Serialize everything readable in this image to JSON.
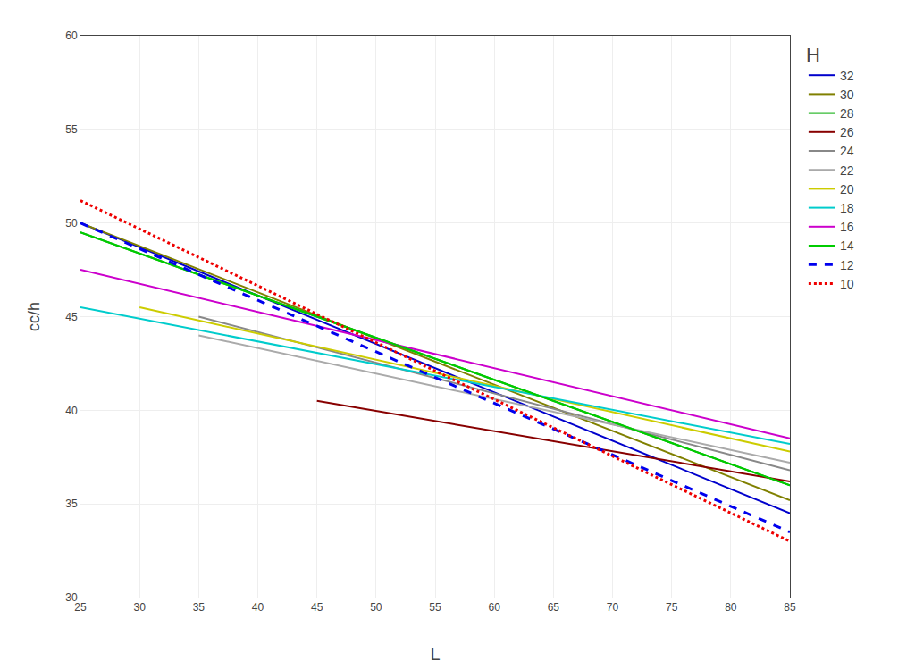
{
  "chart_data": {
    "type": "line",
    "xlabel": "L",
    "ylabel": "cc/h",
    "legend_title": "H",
    "legend": "right",
    "grid": true,
    "xlim": [
      25,
      85
    ],
    "ylim": [
      30,
      60
    ],
    "xticks": [
      25,
      30,
      35,
      40,
      45,
      50,
      55,
      60,
      65,
      70,
      75,
      80,
      85
    ],
    "yticks": [
      30,
      35,
      40,
      45,
      50,
      55,
      60
    ],
    "series": [
      {
        "name": "32",
        "color": "#0000cc",
        "line_style": "solid",
        "x": [
          25,
          85
        ],
        "values": [
          50.0,
          34.5
        ]
      },
      {
        "name": "30",
        "color": "#808000",
        "line_style": "solid",
        "x": [
          25,
          85
        ],
        "values": [
          50.0,
          35.2
        ]
      },
      {
        "name": "28",
        "color": "#00aa00",
        "line_style": "solid",
        "x": [
          25,
          85
        ],
        "values": [
          49.5,
          36.0
        ]
      },
      {
        "name": "26",
        "color": "#880000",
        "line_style": "solid",
        "x": [
          45,
          85
        ],
        "values": [
          40.5,
          36.2
        ]
      },
      {
        "name": "24",
        "color": "#888888",
        "line_style": "solid",
        "x": [
          35,
          85
        ],
        "values": [
          45.0,
          36.8
        ]
      },
      {
        "name": "22",
        "color": "#aaaaaa",
        "line_style": "solid",
        "x": [
          35,
          85
        ],
        "values": [
          44.0,
          37.2
        ]
      },
      {
        "name": "20",
        "color": "#cccc00",
        "line_style": "solid",
        "x": [
          30,
          85
        ],
        "values": [
          45.5,
          37.8
        ]
      },
      {
        "name": "18",
        "color": "#00cccc",
        "line_style": "solid",
        "x": [
          25,
          85
        ],
        "values": [
          45.5,
          38.2
        ]
      },
      {
        "name": "16",
        "color": "#cc00cc",
        "line_style": "solid",
        "x": [
          25,
          85
        ],
        "values": [
          47.5,
          38.5
        ]
      },
      {
        "name": "14",
        "color": "#00cc00",
        "line_style": "solid",
        "x": [
          25,
          85
        ],
        "values": [
          49.5,
          36.0
        ]
      },
      {
        "name": "12",
        "color": "#0000ee",
        "line_style": "dashed",
        "x": [
          25,
          85
        ],
        "values": [
          50.0,
          33.5
        ]
      },
      {
        "name": "10",
        "color": "#ee0000",
        "line_style": "dotted",
        "x": [
          25,
          85
        ],
        "values": [
          51.2,
          33.0
        ]
      }
    ]
  }
}
